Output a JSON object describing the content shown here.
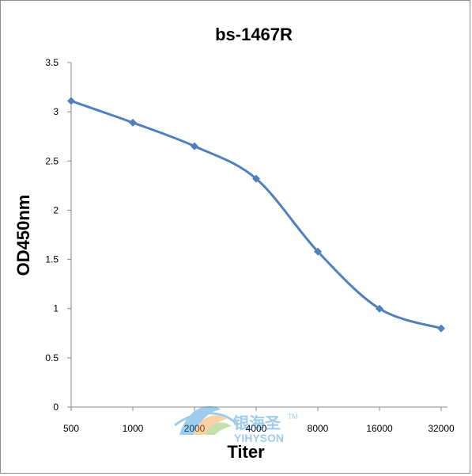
{
  "chart_data": {
    "type": "line",
    "title": "bs-1467R",
    "xlabel": "Titer",
    "ylabel": "OD450nm",
    "categories": [
      "500",
      "1000",
      "2000",
      "4000",
      "8000",
      "16000",
      "32000"
    ],
    "series": [
      {
        "values": [
          3.11,
          2.89,
          2.65,
          2.32,
          1.58,
          1.0,
          0.8
        ]
      }
    ],
    "ylim": [
      0,
      3.5
    ],
    "yticks": [
      "0",
      "0.5",
      "1",
      "1.5",
      "2",
      "2.5",
      "3",
      "3.5"
    ],
    "grid": false,
    "legend": "none",
    "colors": {
      "line": "#4F81BD",
      "marker": "#4F81BD",
      "axis": "#888888",
      "text": "#000000",
      "watermark_blue": "#2E8FD6",
      "watermark_orange": "#F39C3A"
    }
  },
  "watermark": {
    "brand_cn": "银海圣",
    "brand_en": "YIHYSON",
    "trademark": "TM"
  }
}
